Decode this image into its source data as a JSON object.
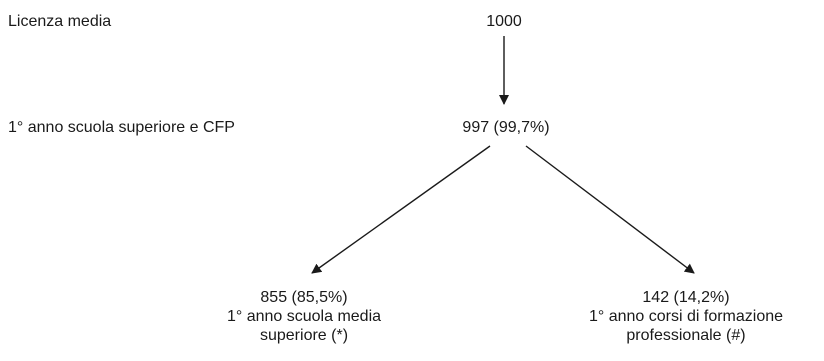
{
  "levels": {
    "licenza_label": "Licenza media",
    "primo_anno_label": "1° anno scuola superiore e CFP"
  },
  "nodes": {
    "root": {
      "value": "1000"
    },
    "middle": {
      "value": "997 (99,7%)"
    },
    "left": {
      "value": "855 (85,5%)",
      "line1": "1° anno scuola media",
      "line2": "superiore (*)"
    },
    "right": {
      "value": "142 (14,2%)",
      "line1": "1° anno corsi di formazione",
      "line2": "professionale (#)"
    }
  },
  "colors": {
    "text": "#1a1a1a",
    "arrow": "#1a1a1a"
  }
}
